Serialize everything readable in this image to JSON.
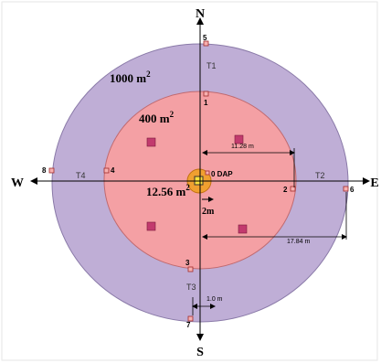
{
  "compass": {
    "north": "N",
    "south": "S",
    "west": "W",
    "east": "E"
  },
  "areas": {
    "outer_label": "1000 m",
    "outer_exp": "2",
    "middle_label": "400 m",
    "middle_exp": "2",
    "center_label": "12.56 m",
    "center_exp": "2"
  },
  "transects": {
    "t1": "T1",
    "t2": "T2",
    "t3": "T3",
    "t4": "T4"
  },
  "points": {
    "p0": "0 DAP",
    "p1": "1",
    "p2": "2",
    "p3": "3",
    "p4": "4",
    "p5": "5",
    "p6": "6",
    "p7": "7",
    "p8": "8"
  },
  "distances": {
    "middle_radius": "11.28 m",
    "outer_radius": "17.84 m",
    "center_radius": "2m",
    "spacing": "1.0 m"
  },
  "colors": {
    "outer": "#bfaed6",
    "middle": "#f4a0a4",
    "center": "#f0a030",
    "marker": "#b82a5e",
    "post_fill": "#f7b0b0",
    "post_stroke": "#a02b2b"
  }
}
